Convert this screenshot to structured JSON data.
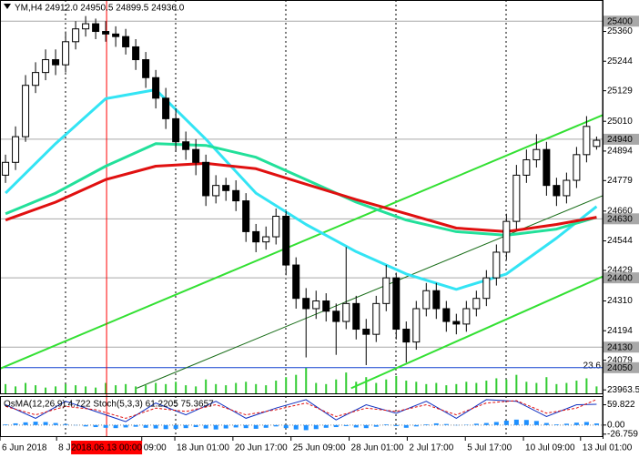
{
  "chart_data": {
    "type": "candlestick",
    "header": "YM,H4  24912.0 24950.5 24899.5 24936.0",
    "xlim": [
      -0.55,
      59.6
    ],
    "ylim": [
      23950,
      25482.5
    ],
    "yticks": [
      25360,
      25244,
      25129,
      25010,
      24894,
      24779,
      24660,
      24544,
      24429,
      24310,
      24194,
      24079,
      23963.5
    ],
    "xticks": [
      {
        "value": -0.55,
        "label": "6 Jun 2018"
      },
      {
        "value": 5.1,
        "label": "8 J"
      },
      {
        "value": 13.6,
        "label": "09:00"
      },
      {
        "value": 16.9,
        "label": "18 Jun 01:00"
      },
      {
        "value": 22.7,
        "label": "20 Jun 17:00"
      },
      {
        "value": 28.5,
        "label": "25 Jun 09:00"
      },
      {
        "value": 34.3,
        "label": "28 Jun 01:00"
      },
      {
        "value": 40.1,
        "label": "2 Jul 17:00"
      },
      {
        "value": 45.9,
        "label": "5 Jul 17:00"
      },
      {
        "value": 51.7,
        "label": "10 Jul 09:00"
      },
      {
        "value": 57.4,
        "label": "13 Jul 01:00"
      }
    ],
    "cursor": {
      "value": 10.09,
      "label": "2018.06.13 00:00",
      "color": "#ff0000"
    },
    "up_color": "#ffffff",
    "down_color": "#000000",
    "open": [
      24800,
      24850,
      24950,
      25150,
      25200,
      25250,
      25230,
      25320,
      25370,
      25390,
      25360,
      25350,
      25340,
      25300,
      25250,
      25180,
      25100,
      25020,
      24930,
      24900,
      24850,
      24720,
      24760,
      24740,
      24700,
      24580,
      24540,
      24560,
      24640,
      24450,
      24320,
      24280,
      24310,
      24270,
      24230,
      24300,
      24200,
      24180,
      24300,
      24400,
      24200,
      24150,
      24280,
      24350,
      24280,
      24230,
      24220,
      24280,
      24320,
      24400,
      24500,
      24620,
      24800,
      24860,
      24900,
      24760,
      24720,
      24780,
      24880,
      24912
    ],
    "high": [
      24880,
      24990,
      25190,
      25240,
      25290,
      25290,
      25360,
      25400,
      25420,
      25410,
      25400,
      25380,
      25370,
      25330,
      25280,
      25210,
      25140,
      25060,
      24970,
      24940,
      24880,
      24800,
      24790,
      24780,
      24730,
      24610,
      24600,
      24670,
      24660,
      24480,
      24360,
      24350,
      24340,
      24300,
      24520,
      24330,
      24240,
      24330,
      24450,
      24420,
      24230,
      24310,
      24380,
      24380,
      24310,
      24260,
      24310,
      24350,
      24430,
      24530,
      24650,
      24840,
      24900,
      24960,
      24930,
      24790,
      24810,
      24910,
      25030,
      24950.5
    ],
    "low": [
      24770,
      24820,
      24930,
      25120,
      25170,
      25190,
      25200,
      25290,
      25340,
      25330,
      25320,
      25300,
      25270,
      25210,
      25140,
      25060,
      24980,
      24890,
      24860,
      24800,
      24680,
      24690,
      24700,
      24660,
      24540,
      24500,
      24510,
      24530,
      24410,
      24280,
      24090,
      24240,
      24230,
      24100,
      24200,
      24160,
      24060,
      24150,
      24270,
      24160,
      24070,
      24120,
      24250,
      24240,
      24190,
      24180,
      24190,
      24250,
      24290,
      24370,
      24470,
      24590,
      24770,
      24830,
      24720,
      24680,
      24690,
      24750,
      24850,
      24899.5
    ],
    "close": [
      24850,
      24950,
      25150,
      25200,
      25250,
      25230,
      25320,
      25370,
      25390,
      25360,
      25350,
      25340,
      25300,
      25250,
      25180,
      25100,
      25020,
      24930,
      24900,
      24850,
      24720,
      24760,
      24740,
      24700,
      24580,
      24540,
      24560,
      24640,
      24450,
      24320,
      24280,
      24310,
      24270,
      24230,
      24300,
      24200,
      24180,
      24300,
      24400,
      24200,
      24150,
      24280,
      24350,
      24280,
      24230,
      24220,
      24280,
      24320,
      24400,
      24500,
      24620,
      24800,
      24860,
      24900,
      24760,
      24720,
      24780,
      24880,
      24990,
      24936
    ],
    "levels": [
      25400,
      24940,
      24630,
      24400,
      24130,
      24050
    ],
    "moving_averages": [
      {
        "color": "#33e4f4",
        "x": [
          0,
          5,
          10,
          15,
          20,
          25,
          30,
          35,
          40,
          45,
          50,
          55,
          59
        ],
        "values": [
          24730,
          24923,
          25098,
          25133,
          24940,
          24730,
          24608,
          24502,
          24415,
          24355,
          24415,
          24555,
          24678
        ]
      },
      {
        "color": "#22e09a",
        "x": [
          0,
          5,
          10,
          15,
          20,
          25,
          30,
          35,
          40,
          45,
          50,
          55,
          59
        ],
        "values": [
          24650,
          24730,
          24835,
          24923,
          24916,
          24870,
          24783,
          24695,
          24625,
          24580,
          24566,
          24590,
          24636
        ]
      },
      {
        "color": "#e01010",
        "x": [
          0,
          5,
          10,
          15,
          20,
          25,
          30,
          35,
          40,
          45,
          50,
          55,
          59
        ],
        "values": [
          24625,
          24695,
          24783,
          24835,
          24846,
          24825,
          24765,
          24705,
          24650,
          24594,
          24580,
          24608,
          24636
        ]
      }
    ],
    "trendlines": [
      {
        "color": "#33e033",
        "x": [
          -0.5,
          59.6
        ],
        "values": [
          24047,
          25034
        ]
      },
      {
        "color": "#33e033",
        "x": [
          34.5,
          59.6
        ],
        "values": [
          23970,
          24405
        ]
      },
      {
        "color": "#1a6e1a",
        "x": [
          13.1,
          59.6
        ],
        "values": [
          23970,
          24720
        ]
      }
    ],
    "volume": {
      "color": "#33cc33",
      "ylim": [
        0,
        23.6
      ],
      "yticks": [
        23.6
      ],
      "values": [
        8,
        6,
        9,
        7,
        5,
        6,
        8,
        7,
        6,
        5,
        9,
        7,
        8,
        6,
        7,
        9,
        8,
        10,
        7,
        6,
        12,
        8,
        7,
        9,
        10,
        8,
        7,
        11,
        14,
        16,
        22,
        9,
        8,
        12,
        18,
        10,
        14,
        9,
        12,
        15,
        11,
        10,
        8,
        9,
        7,
        8,
        10,
        9,
        11,
        13,
        12,
        16,
        10,
        9,
        14,
        8,
        9,
        11,
        13,
        6
      ]
    },
    "indicator": {
      "title": "OsMA(12,26,9) 4.722  Stoch(5,3,3) 61.2205 75.3657",
      "ylim": [
        -30,
        80
      ],
      "yticks": [
        59.822,
        {
          "value": 0,
          "label": "0.00"
        },
        -26.759
      ],
      "osma_color": "#1e90ff",
      "osma": [
        2,
        5,
        8,
        10,
        9,
        6,
        3,
        -1,
        -4,
        -6,
        -8,
        -9,
        -7,
        -5,
        -8,
        -10,
        -12,
        -11,
        -9,
        -6,
        -10,
        -13,
        -10,
        -7,
        -9,
        -11,
        -8,
        -4,
        -9,
        -13,
        -15,
        -12,
        -8,
        -6,
        -3,
        -7,
        -9,
        -5,
        2,
        -3,
        -8,
        -4,
        2,
        5,
        3,
        -1,
        1,
        4,
        6,
        9,
        13,
        16,
        15,
        12,
        6,
        2,
        4,
        7,
        9,
        4.722
      ],
      "stoch_x": [
        0,
        3,
        6,
        9,
        12,
        15,
        18,
        21,
        24,
        27,
        30,
        33,
        36,
        39,
        42,
        45,
        48,
        51,
        54,
        57,
        59
      ],
      "stoch_main": {
        "color": "#1030c0",
        "values": [
          60,
          20,
          70,
          40,
          10,
          65,
          30,
          70,
          20,
          50,
          75,
          15,
          60,
          35,
          70,
          20,
          75,
          70,
          25,
          60,
          61.2205
        ]
      },
      "stoch_signal": {
        "color": "#e01010",
        "values": [
          55,
          30,
          55,
          45,
          20,
          50,
          40,
          60,
          30,
          45,
          65,
          25,
          50,
          40,
          60,
          30,
          65,
          72,
          35,
          50,
          75.3657
        ]
      }
    }
  }
}
